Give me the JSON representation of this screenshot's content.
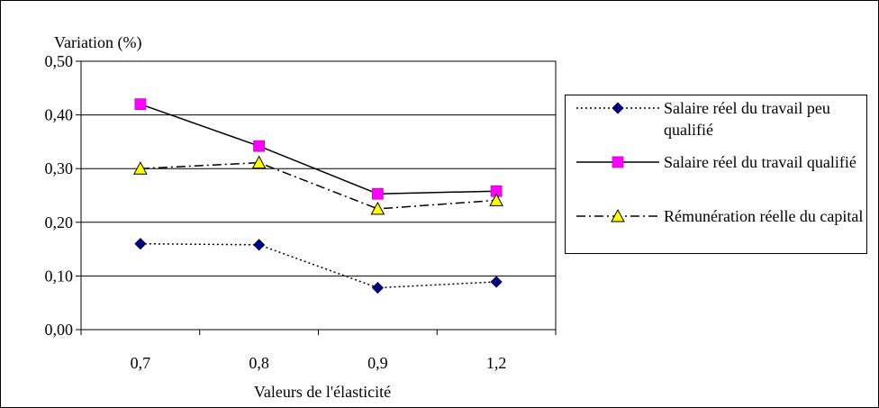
{
  "chart_data": {
    "type": "line",
    "title": "",
    "ylabel": "Variation (%)",
    "xlabel": "Valeurs de l'élasticité",
    "categories": [
      "0,7",
      "0,8",
      "0,9",
      "1,2"
    ],
    "ylim": [
      0,
      0.5
    ],
    "yticks": [
      "0,00",
      "0,10",
      "0,20",
      "0,30",
      "0,40",
      "0,50"
    ],
    "grid": true,
    "legend_position": "right",
    "series": [
      {
        "name": "Salaire réel du travail peu qualifié",
        "values": [
          0.16,
          0.158,
          0.078,
          0.089
        ],
        "color": "#000080",
        "marker": "diamond",
        "line_style": "dotted"
      },
      {
        "name": "Salaire réel du travail qualifié",
        "values": [
          0.42,
          0.342,
          0.253,
          0.258
        ],
        "color": "#ff00ff",
        "marker": "square",
        "line_style": "solid"
      },
      {
        "name": "Rémunération réelle du capital",
        "values": [
          0.3,
          0.311,
          0.225,
          0.241
        ],
        "color": "#ffff00",
        "marker": "triangle",
        "line_style": "dashdot"
      }
    ]
  }
}
